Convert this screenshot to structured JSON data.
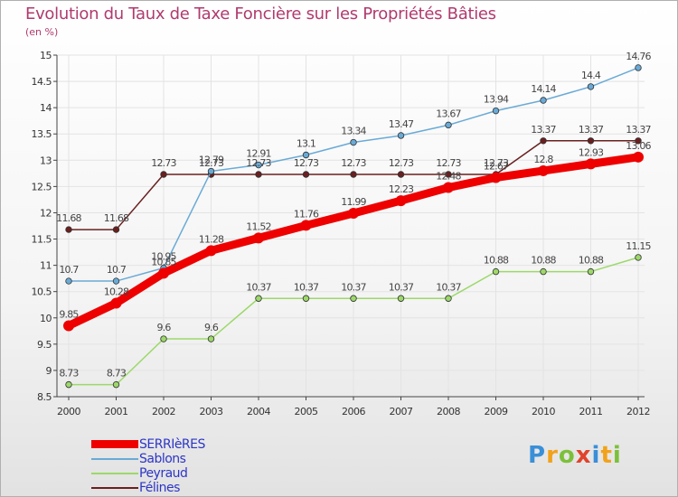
{
  "chart_data": {
    "type": "line",
    "title": "Evolution du Taux de Taxe Foncière sur les Propriétés Bâties",
    "subtitle": "(en %)",
    "ylim": [
      8.5,
      15
    ],
    "yticks": [
      "8.5",
      "9",
      "9.5",
      "10",
      "10.5",
      "11",
      "11.5",
      "12",
      "12.5",
      "13",
      "13.5",
      "14",
      "14.5",
      "15"
    ],
    "categories": [
      "2000",
      "2001",
      "2002",
      "2003",
      "2004",
      "2005",
      "2006",
      "2007",
      "2008",
      "2009",
      "2010",
      "2011",
      "2012"
    ],
    "series": [
      {
        "name": "Félines",
        "color": "#6a1f1f",
        "values": [
          11.68,
          11.68,
          12.73,
          12.73,
          12.73,
          12.73,
          12.73,
          12.73,
          12.73,
          12.73,
          13.37,
          13.37,
          13.37
        ],
        "labels": [
          "11.68",
          "11.68",
          "12.73",
          "12.73",
          "12.73",
          "12.73",
          "12.73",
          "12.73",
          "12.73",
          "12.73",
          "13.37",
          "13.37",
          "13.37"
        ]
      },
      {
        "name": "Sablons",
        "color": "#6aaad6",
        "values": [
          10.7,
          10.7,
          10.95,
          12.79,
          12.91,
          13.1,
          13.34,
          13.47,
          13.67,
          13.94,
          14.14,
          14.4,
          14.76
        ],
        "labels": [
          "10.7",
          "10.7",
          "10.95",
          "12.79",
          "12.91",
          "13.1",
          "13.34",
          "13.47",
          "13.67",
          "13.94",
          "14.14",
          "14.4",
          "14.76"
        ]
      },
      {
        "name": "Peyraud",
        "color": "#9cd86a",
        "values": [
          8.73,
          8.73,
          9.6,
          9.6,
          10.37,
          10.37,
          10.37,
          10.37,
          10.37,
          10.88,
          10.88,
          10.88,
          11.15
        ],
        "labels": [
          "8.73",
          "8.73",
          "9.6",
          "9.6",
          "10.37",
          "10.37",
          "10.37",
          "10.37",
          "10.37",
          "10.88",
          "10.88",
          "10.88",
          "11.15"
        ]
      },
      {
        "name": "SERRIèRES",
        "color": "#ee0000",
        "bold": true,
        "values": [
          9.85,
          10.28,
          10.85,
          11.28,
          11.52,
          11.76,
          11.99,
          12.23,
          12.48,
          12.67,
          12.8,
          12.93,
          13.06
        ],
        "labels": [
          "9.85",
          "10.28",
          "10.85",
          "11.28",
          "11.52",
          "11.76",
          "11.99",
          "12.23",
          "12.48",
          "12.67",
          "12.8",
          "12.93",
          "13.06"
        ]
      }
    ]
  },
  "legend": {
    "items": [
      {
        "label": "SERRIèRES",
        "color": "#ee0000"
      },
      {
        "label": "Sablons",
        "color": "#6aaad6"
      },
      {
        "label": "Peyraud",
        "color": "#9cd86a"
      },
      {
        "label": "Félines",
        "color": "#6a1f1f"
      }
    ]
  },
  "logo": {
    "letters": [
      "P",
      "r",
      "o",
      "x",
      "i",
      "t",
      "i"
    ],
    "colors": [
      "#3a8fd8",
      "#f2a21a",
      "#7cc03a",
      "#e0432c",
      "#3a8fd8",
      "#f2a21a",
      "#7cc03a"
    ]
  }
}
